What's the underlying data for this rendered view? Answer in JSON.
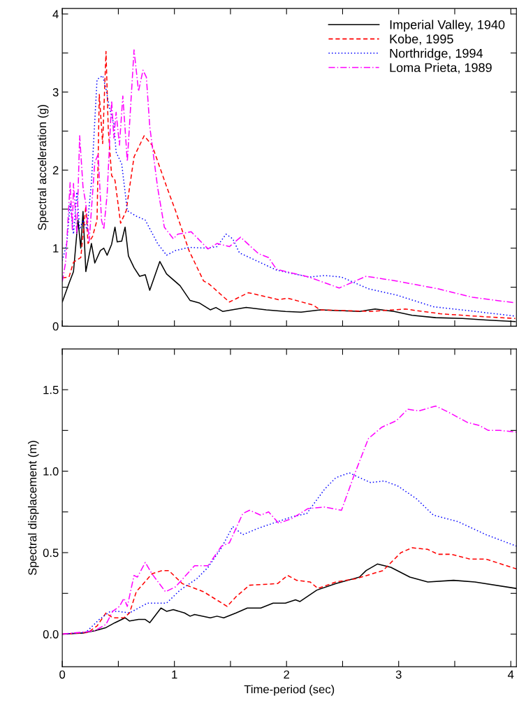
{
  "chart_data": [
    {
      "type": "line",
      "ylabel": "Spectral acceleration (g)",
      "xlim": [
        0,
        4.05
      ],
      "ylim": [
        0,
        4.07
      ],
      "xticks": [
        0,
        {
          "value": 0.5,
          "label": null
        },
        1,
        {
          "value": 1.5,
          "label": null
        },
        2,
        {
          "value": 2.5,
          "label": null
        },
        3,
        {
          "value": 3.5,
          "label": null
        },
        4
      ],
      "yticks": [
        0,
        {
          "value": 0.5,
          "label": null
        },
        1,
        {
          "value": 1.5,
          "label": null
        },
        2,
        {
          "value": 2.5,
          "label": null
        },
        3,
        {
          "value": 3.5,
          "label": null
        },
        4
      ],
      "tick_labels": "y",
      "legend": "top right",
      "series": [
        {
          "name": "Imperial Valley, 1940",
          "color": "#000000",
          "line_style": "solid",
          "x": [
            0,
            0.06,
            0.1,
            0.14,
            0.165,
            0.185,
            0.21,
            0.26,
            0.29,
            0.34,
            0.37,
            0.4,
            0.44,
            0.47,
            0.49,
            0.53,
            0.56,
            0.59,
            0.64,
            0.69,
            0.74,
            0.78,
            0.87,
            0.93,
            1.05,
            1.14,
            1.22,
            1.32,
            1.37,
            1.43,
            1.64,
            1.82,
            1.99,
            2.13,
            2.3,
            2.65,
            2.79,
            2.96,
            3.12,
            3.33,
            3.57,
            3.78,
            4.04
          ],
          "values": [
            0.31,
            0.55,
            0.7,
            1.36,
            1.0,
            1.47,
            0.7,
            1.06,
            0.81,
            0.97,
            1.0,
            0.91,
            1.05,
            1.27,
            1.08,
            1.09,
            1.27,
            0.9,
            0.75,
            0.64,
            0.66,
            0.46,
            0.83,
            0.67,
            0.52,
            0.33,
            0.3,
            0.21,
            0.24,
            0.19,
            0.24,
            0.21,
            0.19,
            0.18,
            0.21,
            0.19,
            0.22,
            0.19,
            0.14,
            0.11,
            0.1,
            0.08,
            0.06
          ]
        },
        {
          "name": "Kobe, 1995",
          "color": "#ff0000",
          "line_style": "dashed",
          "x": [
            0,
            0.06,
            0.1,
            0.165,
            0.21,
            0.23,
            0.27,
            0.31,
            0.33,
            0.36,
            0.39,
            0.41,
            0.44,
            0.47,
            0.52,
            0.57,
            0.64,
            0.73,
            0.8,
            0.94,
            1.01,
            1.13,
            1.26,
            1.31,
            1.49,
            1.66,
            1.93,
            2.01,
            2.24,
            2.3,
            2.75,
            3.06,
            3.37,
            3.78,
            4.04
          ],
          "values": [
            0.62,
            0.63,
            0.82,
            0.88,
            1.54,
            1.06,
            1.15,
            1.36,
            2.97,
            2.34,
            3.52,
            2.53,
            1.93,
            1.87,
            1.32,
            1.48,
            2.17,
            2.44,
            2.32,
            1.75,
            1.48,
            0.97,
            0.58,
            0.54,
            0.31,
            0.43,
            0.34,
            0.36,
            0.27,
            0.21,
            0.19,
            0.22,
            0.16,
            0.12,
            0.1
          ]
        },
        {
          "name": "Northridge, 1994",
          "color": "#0000ff",
          "line_style": "dotted",
          "x": [
            0,
            0.04,
            0.07,
            0.1,
            0.13,
            0.155,
            0.185,
            0.22,
            0.26,
            0.31,
            0.36,
            0.39,
            0.42,
            0.46,
            0.48,
            0.53,
            0.58,
            0.66,
            0.74,
            0.85,
            0.93,
            1.01,
            1.13,
            1.3,
            1.38,
            1.46,
            1.52,
            1.58,
            1.91,
            2.2,
            2.34,
            2.49,
            2.73,
            2.98,
            3.31,
            3.56,
            4.04
          ],
          "values": [
            0.84,
            1.06,
            1.57,
            1.18,
            1.72,
            1.24,
            1.36,
            1.24,
            1.84,
            3.16,
            3.21,
            3.04,
            2.8,
            2.59,
            2.23,
            2.08,
            1.48,
            1.41,
            1.36,
            1.06,
            0.91,
            0.97,
            1.01,
            1.0,
            1.02,
            1.18,
            1.12,
            0.94,
            0.72,
            0.63,
            0.65,
            0.63,
            0.48,
            0.4,
            0.25,
            0.21,
            0.13
          ]
        },
        {
          "name": "Loma Prieta, 1989",
          "color": "#ff00ff",
          "line_style": "dashdot",
          "x": [
            0,
            0.03,
            0.07,
            0.09,
            0.1,
            0.13,
            0.155,
            0.185,
            0.21,
            0.24,
            0.29,
            0.32,
            0.35,
            0.37,
            0.4,
            0.44,
            0.46,
            0.48,
            0.51,
            0.54,
            0.58,
            0.64,
            0.68,
            0.72,
            0.75,
            0.78,
            0.85,
            0.91,
            0.99,
            1.03,
            1.15,
            1.3,
            1.38,
            1.49,
            1.59,
            1.75,
            1.84,
            1.91,
            2.2,
            2.47,
            2.71,
            2.98,
            3.35,
            3.66,
            4.04
          ],
          "values": [
            0.57,
            0.82,
            1.84,
            1.24,
            1.83,
            1.18,
            2.44,
            1.78,
            1.57,
            1.09,
            2.1,
            2.2,
            1.36,
            1.24,
            1.69,
            2.89,
            2.41,
            2.74,
            2.32,
            2.95,
            2.11,
            3.54,
            3.01,
            3.28,
            3.19,
            2.56,
            1.78,
            1.27,
            1.12,
            1.18,
            1.21,
            0.99,
            1.06,
            1.02,
            1.14,
            0.93,
            0.88,
            0.73,
            0.63,
            0.49,
            0.64,
            0.58,
            0.48,
            0.37,
            0.3
          ]
        }
      ]
    },
    {
      "type": "line",
      "xlabel": "Time-period (sec)",
      "ylabel": "Spectral displacement (m)",
      "xlim": [
        0,
        4.05
      ],
      "ylim": [
        -0.2,
        1.75
      ],
      "xticks": [
        0,
        {
          "value": 0.5,
          "label": null
        },
        1,
        {
          "value": 1.5,
          "label": null
        },
        2,
        {
          "value": 2.5,
          "label": null
        },
        3,
        {
          "value": 3.5,
          "label": null
        },
        4
      ],
      "yticks": [
        {
          "value": 0,
          "label": "0.0"
        },
        {
          "value": 0.25,
          "label": null
        },
        {
          "value": 0.5,
          "label": "0.5"
        },
        {
          "value": 0.75,
          "label": null
        },
        {
          "value": 1.0,
          "label": "1.0"
        },
        {
          "value": 1.25,
          "label": null
        },
        {
          "value": 1.5,
          "label": "1.5"
        }
      ],
      "series": [
        {
          "color": "#000000",
          "line_style": "solid",
          "x": [
            0,
            0.19,
            0.29,
            0.39,
            0.47,
            0.56,
            0.6,
            0.68,
            0.74,
            0.78,
            0.88,
            0.93,
            0.99,
            1.09,
            1.14,
            1.18,
            1.32,
            1.38,
            1.44,
            1.55,
            1.65,
            1.77,
            1.88,
            1.99,
            2.08,
            2.12,
            2.27,
            2.44,
            2.65,
            2.71,
            2.81,
            2.93,
            3.1,
            3.26,
            3.49,
            3.68,
            4.05
          ],
          "values": [
            0,
            0.007,
            0.02,
            0.04,
            0.07,
            0.1,
            0.08,
            0.09,
            0.09,
            0.07,
            0.16,
            0.14,
            0.15,
            0.13,
            0.11,
            0.12,
            0.1,
            0.11,
            0.1,
            0.13,
            0.16,
            0.16,
            0.19,
            0.19,
            0.21,
            0.2,
            0.27,
            0.31,
            0.35,
            0.39,
            0.43,
            0.41,
            0.35,
            0.32,
            0.33,
            0.32,
            0.28
          ]
        },
        {
          "color": "#ff0000",
          "line_style": "dashed",
          "x": [
            0,
            0.23,
            0.31,
            0.39,
            0.45,
            0.55,
            0.6,
            0.66,
            0.8,
            0.89,
            0.95,
            1.07,
            1.26,
            1.47,
            1.55,
            1.67,
            1.92,
            2.01,
            2.09,
            2.21,
            2.28,
            2.44,
            2.62,
            2.86,
            3.02,
            3.12,
            3.26,
            3.35,
            3.47,
            3.64,
            3.78,
            4.05
          ],
          "values": [
            0,
            0.01,
            0.05,
            0.13,
            0.1,
            0.1,
            0.13,
            0.26,
            0.37,
            0.39,
            0.39,
            0.31,
            0.26,
            0.17,
            0.23,
            0.3,
            0.31,
            0.36,
            0.33,
            0.32,
            0.28,
            0.32,
            0.34,
            0.39,
            0.5,
            0.53,
            0.52,
            0.49,
            0.49,
            0.46,
            0.46,
            0.4
          ]
        },
        {
          "color": "#0000ff",
          "line_style": "dotted",
          "x": [
            0,
            0.21,
            0.33,
            0.43,
            0.49,
            0.6,
            0.76,
            0.93,
            1.05,
            1.2,
            1.3,
            1.42,
            1.52,
            1.61,
            1.75,
            1.92,
            2.05,
            2.18,
            2.34,
            2.44,
            2.56,
            2.62,
            2.75,
            2.87,
            2.99,
            3.16,
            3.31,
            3.53,
            3.78,
            4.05
          ],
          "values": [
            0,
            0.01,
            0.09,
            0.14,
            0.14,
            0.13,
            0.19,
            0.19,
            0.27,
            0.34,
            0.41,
            0.53,
            0.66,
            0.61,
            0.65,
            0.69,
            0.72,
            0.74,
            0.89,
            0.96,
            0.99,
            0.97,
            0.93,
            0.94,
            0.91,
            0.83,
            0.73,
            0.69,
            0.61,
            0.54
          ]
        },
        {
          "color": "#ff00ff",
          "line_style": "dashdot",
          "x": [
            0,
            0.29,
            0.34,
            0.39,
            0.45,
            0.51,
            0.55,
            0.58,
            0.64,
            0.67,
            0.74,
            0.8,
            0.92,
            1.01,
            1.18,
            1.3,
            1.42,
            1.49,
            1.61,
            1.67,
            1.77,
            1.84,
            1.93,
            2.05,
            2.19,
            2.34,
            2.49,
            2.6,
            2.73,
            2.85,
            2.98,
            3.08,
            3.18,
            3.33,
            3.45,
            3.61,
            3.72,
            3.8,
            3.9,
            4.05
          ],
          "values": [
            0,
            0.02,
            0.04,
            0.06,
            0.14,
            0.17,
            0.22,
            0.17,
            0.36,
            0.35,
            0.44,
            0.37,
            0.26,
            0.29,
            0.42,
            0.42,
            0.54,
            0.56,
            0.74,
            0.76,
            0.73,
            0.75,
            0.68,
            0.71,
            0.77,
            0.78,
            0.76,
            0.97,
            1.2,
            1.27,
            1.31,
            1.38,
            1.37,
            1.4,
            1.36,
            1.3,
            1.28,
            1.25,
            1.25,
            1.24
          ]
        }
      ]
    }
  ]
}
